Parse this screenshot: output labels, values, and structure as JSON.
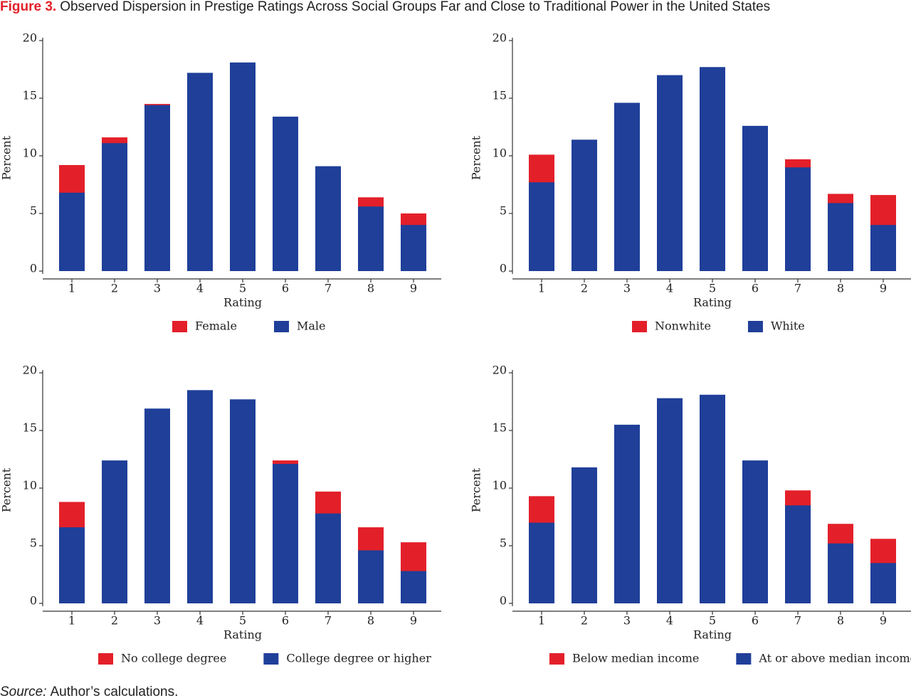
{
  "figure_label": "Figure 3.",
  "title": "Observed Dispersion in Prestige Ratings Across Social Groups Far and Close to Traditional Power in the United States",
  "source_label": "Source:",
  "source": "Author’s calculations.",
  "chart_data": [
    {
      "type": "bar",
      "xlabel": "Rating",
      "ylabel": "Percent",
      "categories": [
        "1",
        "2",
        "3",
        "4",
        "5",
        "6",
        "7",
        "8",
        "9"
      ],
      "ylim": [
        0,
        20
      ],
      "yticks": [
        0,
        5,
        10,
        15,
        20
      ],
      "series": [
        {
          "name": "Female",
          "color": "#e3202a",
          "values": [
            9.2,
            11.6,
            14.5,
            16.2,
            16.9,
            12.2,
            8.0,
            6.4,
            5.0
          ]
        },
        {
          "name": "Male",
          "color": "#1f3f99",
          "values": [
            6.8,
            11.1,
            14.4,
            17.2,
            18.1,
            13.4,
            9.1,
            5.6,
            4.0
          ]
        }
      ]
    },
    {
      "type": "bar",
      "xlabel": "Rating",
      "ylabel": "Percent",
      "categories": [
        "1",
        "2",
        "3",
        "4",
        "5",
        "6",
        "7",
        "8",
        "9"
      ],
      "ylim": [
        0,
        20
      ],
      "yticks": [
        0,
        5,
        10,
        15,
        20
      ],
      "series": [
        {
          "name": "Nonwhite",
          "color": "#e3202a",
          "values": [
            10.1,
            11.3,
            13.6,
            15.6,
            15.6,
            10.8,
            9.7,
            6.7,
            6.6
          ]
        },
        {
          "name": "White",
          "color": "#1f3f99",
          "values": [
            7.7,
            11.4,
            14.6,
            17.0,
            17.7,
            12.6,
            9.0,
            5.9,
            4.0
          ]
        }
      ]
    },
    {
      "type": "bar",
      "xlabel": "Rating",
      "ylabel": "Percent",
      "categories": [
        "1",
        "2",
        "3",
        "4",
        "5",
        "6",
        "7",
        "8",
        "9"
      ],
      "ylim": [
        0,
        20
      ],
      "yticks": [
        0,
        5,
        10,
        15,
        20
      ],
      "series": [
        {
          "name": "No college degree",
          "color": "#e3202a",
          "values": [
            8.8,
            11.6,
            14.6,
            15.6,
            15.4,
            12.4,
            9.7,
            6.6,
            5.3
          ]
        },
        {
          "name": "College degree or higher",
          "color": "#1f3f99",
          "values": [
            6.6,
            12.4,
            16.9,
            18.5,
            17.7,
            12.1,
            7.8,
            4.6,
            2.8
          ]
        }
      ]
    },
    {
      "type": "bar",
      "xlabel": "Rating",
      "ylabel": "Percent",
      "categories": [
        "1",
        "2",
        "3",
        "4",
        "5",
        "6",
        "7",
        "8",
        "9"
      ],
      "ylim": [
        0,
        20
      ],
      "yticks": [
        0,
        5,
        10,
        15,
        20
      ],
      "series": [
        {
          "name": "Below median income",
          "color": "#e3202a",
          "values": [
            9.3,
            11.2,
            14.4,
            16.4,
            16.0,
            10.4,
            9.8,
            6.9,
            5.6
          ]
        },
        {
          "name": "At or above median income",
          "color": "#1f3f99",
          "values": [
            7.0,
            11.8,
            15.5,
            17.8,
            18.1,
            12.4,
            8.5,
            5.2,
            3.5
          ]
        }
      ]
    }
  ]
}
